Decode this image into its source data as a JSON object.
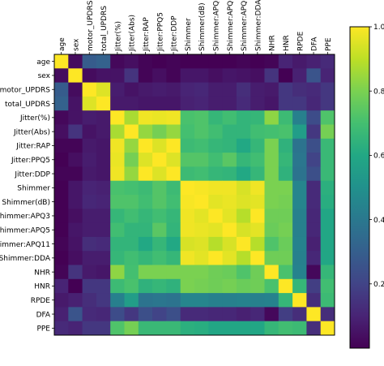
{
  "chart_data": {
    "type": "heatmap",
    "title": "",
    "xlabel": "",
    "ylabel": "",
    "labels": [
      "age",
      "sex",
      "motor_UPDRS",
      "total_UPDRS",
      "Jitter(%)",
      "Jitter(Abs)",
      "Jitter:RAP",
      "Jitter:PPQ5",
      "Jitter:DDP",
      "Shimmer",
      "Shimmer(dB)",
      "Shimmer:APQ3",
      "Shimmer:APQ5",
      "Shimmer:APQ11",
      "Shimmer:DDA",
      "NHR",
      "HNR",
      "RPDE",
      "DFA",
      "PPE"
    ],
    "matrix": [
      [
        1.0,
        0.03,
        0.29,
        0.31,
        0.02,
        0.04,
        0.01,
        0.0,
        0.01,
        0.0,
        0.0,
        0.0,
        0.0,
        0.01,
        0.0,
        0.01,
        0.1,
        0.07,
        0.09,
        0.12
      ],
      [
        0.03,
        1.0,
        0.03,
        0.05,
        0.05,
        0.15,
        0.01,
        0.04,
        0.01,
        0.06,
        0.06,
        0.04,
        0.06,
        0.05,
        0.04,
        0.15,
        0.0,
        0.09,
        0.26,
        0.1
      ],
      [
        0.29,
        0.03,
        1.0,
        0.95,
        0.08,
        0.05,
        0.07,
        0.08,
        0.07,
        0.1,
        0.11,
        0.08,
        0.08,
        0.13,
        0.08,
        0.07,
        0.16,
        0.13,
        0.12,
        0.16
      ],
      [
        0.31,
        0.05,
        0.95,
        1.0,
        0.07,
        0.07,
        0.06,
        0.06,
        0.06,
        0.09,
        0.1,
        0.08,
        0.08,
        0.12,
        0.08,
        0.06,
        0.16,
        0.16,
        0.11,
        0.16
      ],
      [
        0.02,
        0.05,
        0.08,
        0.07,
        1.0,
        0.87,
        0.98,
        0.97,
        0.98,
        0.71,
        0.72,
        0.66,
        0.69,
        0.65,
        0.66,
        0.83,
        0.68,
        0.43,
        0.23,
        0.72
      ],
      [
        0.04,
        0.15,
        0.05,
        0.07,
        0.87,
        1.0,
        0.84,
        0.79,
        0.84,
        0.7,
        0.72,
        0.69,
        0.65,
        0.65,
        0.69,
        0.7,
        0.71,
        0.55,
        0.16,
        0.79
      ],
      [
        0.01,
        0.01,
        0.07,
        0.06,
        0.98,
        0.84,
        1.0,
        0.95,
        1.0,
        0.68,
        0.69,
        0.66,
        0.65,
        0.6,
        0.66,
        0.8,
        0.64,
        0.38,
        0.24,
        0.67
      ],
      [
        0.0,
        0.04,
        0.08,
        0.06,
        0.97,
        0.79,
        0.95,
        1.0,
        0.95,
        0.73,
        0.73,
        0.69,
        0.74,
        0.66,
        0.69,
        0.8,
        0.66,
        0.39,
        0.2,
        0.67
      ],
      [
        0.01,
        0.01,
        0.07,
        0.06,
        0.98,
        0.84,
        1.0,
        0.95,
        1.0,
        0.68,
        0.69,
        0.66,
        0.65,
        0.6,
        0.66,
        0.8,
        0.64,
        0.38,
        0.24,
        0.67
      ],
      [
        0.0,
        0.06,
        0.1,
        0.09,
        0.71,
        0.7,
        0.68,
        0.73,
        0.68,
        1.0,
        0.99,
        0.98,
        0.98,
        0.94,
        0.98,
        0.8,
        0.8,
        0.45,
        0.12,
        0.63
      ],
      [
        0.0,
        0.06,
        0.11,
        0.1,
        0.72,
        0.72,
        0.69,
        0.73,
        0.69,
        0.99,
        1.0,
        0.96,
        0.97,
        0.95,
        0.96,
        0.8,
        0.79,
        0.45,
        0.12,
        0.62
      ],
      [
        0.0,
        0.04,
        0.08,
        0.08,
        0.66,
        0.69,
        0.66,
        0.69,
        0.66,
        0.98,
        0.96,
        1.0,
        0.96,
        0.89,
        1.0,
        0.78,
        0.78,
        0.43,
        0.11,
        0.59
      ],
      [
        0.0,
        0.06,
        0.08,
        0.08,
        0.69,
        0.65,
        0.65,
        0.74,
        0.65,
        0.98,
        0.97,
        0.96,
        1.0,
        0.94,
        0.96,
        0.77,
        0.79,
        0.43,
        0.11,
        0.59
      ],
      [
        0.01,
        0.05,
        0.13,
        0.12,
        0.65,
        0.65,
        0.6,
        0.66,
        0.6,
        0.94,
        0.95,
        0.89,
        0.94,
        1.0,
        0.89,
        0.72,
        0.77,
        0.44,
        0.09,
        0.59
      ],
      [
        0.0,
        0.04,
        0.08,
        0.08,
        0.66,
        0.69,
        0.66,
        0.69,
        0.66,
        0.98,
        0.96,
        1.0,
        0.96,
        0.89,
        1.0,
        0.78,
        0.78,
        0.43,
        0.11,
        0.59
      ],
      [
        0.01,
        0.15,
        0.07,
        0.06,
        0.83,
        0.7,
        0.8,
        0.8,
        0.8,
        0.8,
        0.8,
        0.78,
        0.77,
        0.72,
        0.78,
        1.0,
        0.71,
        0.44,
        0.02,
        0.66
      ],
      [
        0.1,
        0.0,
        0.16,
        0.16,
        0.68,
        0.71,
        0.64,
        0.66,
        0.64,
        0.8,
        0.79,
        0.78,
        0.79,
        0.77,
        0.78,
        0.71,
        1.0,
        0.66,
        0.18,
        0.69
      ],
      [
        0.07,
        0.09,
        0.13,
        0.16,
        0.43,
        0.55,
        0.38,
        0.39,
        0.38,
        0.45,
        0.45,
        0.43,
        0.43,
        0.44,
        0.43,
        0.44,
        0.66,
        1.0,
        0.13,
        0.68
      ],
      [
        0.09,
        0.26,
        0.12,
        0.11,
        0.23,
        0.16,
        0.24,
        0.2,
        0.24,
        0.12,
        0.12,
        0.11,
        0.11,
        0.09,
        0.11,
        0.02,
        0.18,
        0.13,
        1.0,
        0.13
      ],
      [
        0.12,
        0.1,
        0.16,
        0.16,
        0.72,
        0.79,
        0.67,
        0.67,
        0.67,
        0.63,
        0.62,
        0.59,
        0.59,
        0.59,
        0.59,
        0.66,
        0.69,
        0.68,
        0.13,
        1.0
      ]
    ],
    "colormap": "viridis",
    "colorbar": {
      "vmin": 0.0,
      "vmax": 1.0,
      "ticks": [
        0.2,
        0.4,
        0.6,
        0.8,
        1.0
      ],
      "tick_labels": [
        "0.2",
        "0.4",
        "0.6",
        "0.8",
        "1.0"
      ]
    },
    "grid": false,
    "legend": "colorbar-right"
  }
}
